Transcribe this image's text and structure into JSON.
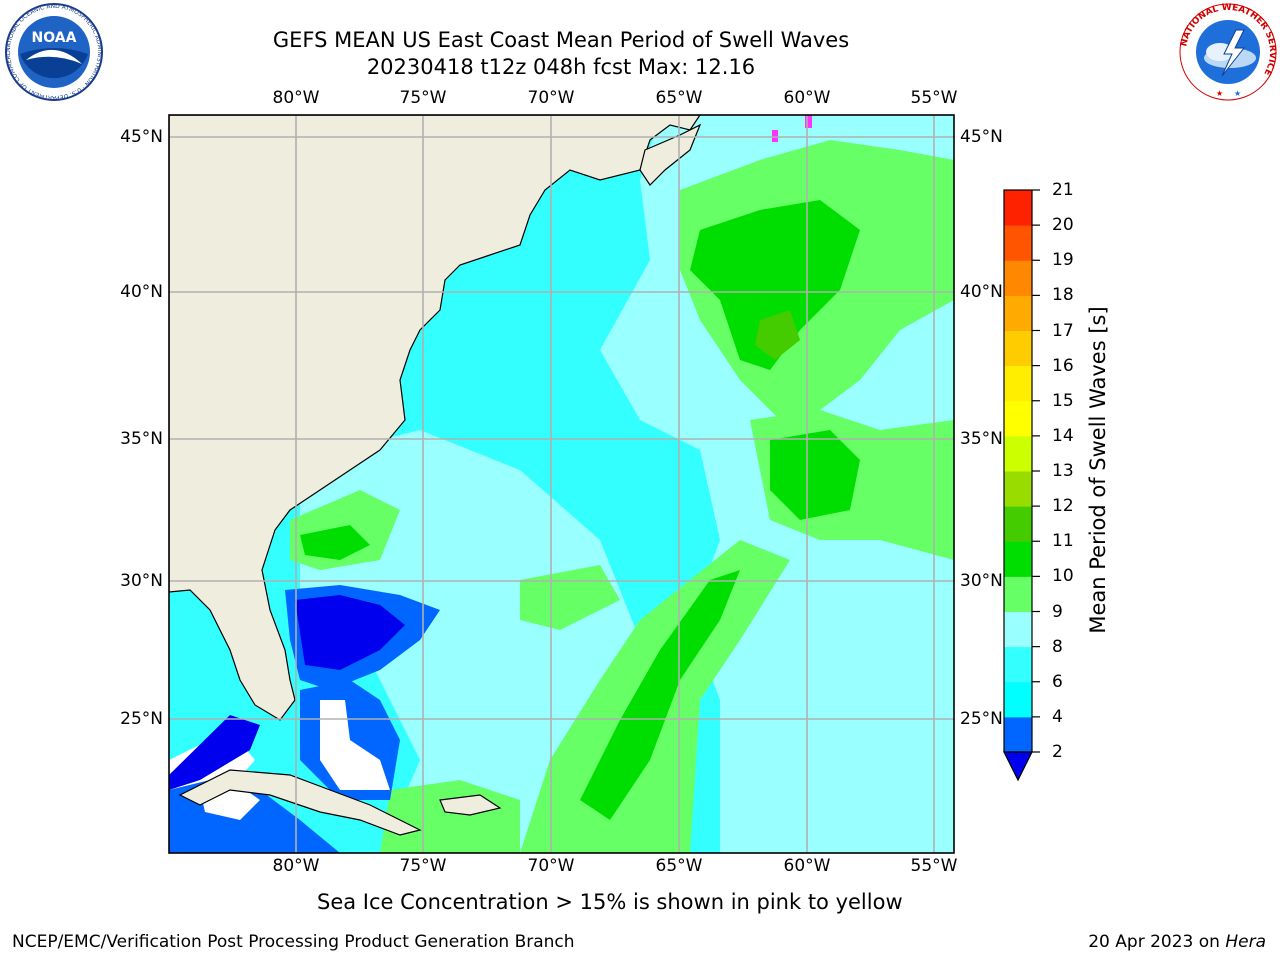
{
  "header": {
    "title": "GEFS MEAN US East Coast Mean Period of Swell Waves",
    "subtitle": "20230418 t12z 048h fcst   Max: 12.16"
  },
  "logos": {
    "noaa_text": "NOAA",
    "noaa_ring": "NATIONAL OCEANIC AND ATMOSPHERIC ADMINISTRATION · U.S. DEPARTMENT OF COMMERCE",
    "nws_ring": "NATIONAL WEATHER SERVICE"
  },
  "map": {
    "lon_labels": [
      "80°W",
      "75°W",
      "70°W",
      "65°W",
      "60°W",
      "55°W"
    ],
    "lat_labels": [
      "45°N",
      "40°N",
      "35°N",
      "30°N",
      "25°N"
    ],
    "land_color": "#efedde",
    "coast_color": "#000000",
    "grid_color": "#b0b0b0",
    "missing_color": "#ffffff"
  },
  "colorbar": {
    "label": "Mean Period of Swell Waves [s]",
    "ticks": [
      "21",
      "20",
      "19",
      "18",
      "17",
      "16",
      "15",
      "14",
      "13",
      "12",
      "11",
      "10",
      "9",
      "8",
      "6",
      "4",
      "2"
    ],
    "levels": [
      2,
      4,
      6,
      8,
      9,
      10,
      11,
      12,
      13,
      14,
      15,
      16,
      17,
      18,
      19,
      20,
      21
    ],
    "colors": [
      "#0066ff",
      "#00ffff",
      "#33ffff",
      "#99ffff",
      "#66ff66",
      "#00dd00",
      "#44cc00",
      "#99dd00",
      "#ccff00",
      "#ffff00",
      "#ffee00",
      "#ffcc00",
      "#ffaa00",
      "#ff8800",
      "#ff5500",
      "#ff2200"
    ],
    "under_color": "#0000ee"
  },
  "caption": "Sea Ice Concentration > 15% is shown in pink to yellow",
  "footer": {
    "left": "NCEP/EMC/Verification Post Processing Product Generation Branch",
    "date": "20 Apr 2023 on ",
    "host": "Hera"
  }
}
